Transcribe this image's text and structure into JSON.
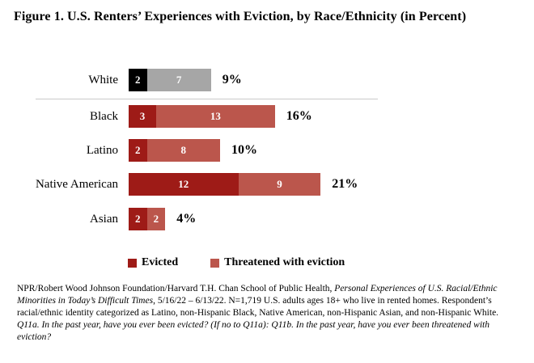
{
  "title": "Figure 1. U.S. Renters’ Experiences with Eviction, by Race/Ethnicity (in Percent)",
  "chart_data": {
    "type": "bar",
    "orientation": "horizontal",
    "stacked": true,
    "title": "Figure 1. U.S. Renters’ Experiences with Eviction, by Race/Ethnicity (in Percent)",
    "value_unit": "percent",
    "categories": [
      "White",
      "Black",
      "Latino",
      "Native American",
      "Asian"
    ],
    "series": [
      {
        "name": "Evicted",
        "values": [
          2,
          3,
          2,
          12,
          2
        ]
      },
      {
        "name": "Threatened with eviction",
        "values": [
          7,
          13,
          8,
          9,
          2
        ]
      }
    ],
    "totals": [
      "9%",
      "16%",
      "10%",
      "21%",
      "4%"
    ],
    "colors": {
      "default": [
        "#9E1B17",
        "#BB564C"
      ],
      "white_row": [
        "#000000",
        "#A6A6A6"
      ]
    },
    "legend": [
      {
        "label": "Evicted",
        "color": "#9E1B17"
      },
      {
        "label": "Threatened with eviction",
        "color": "#BB564C"
      }
    ],
    "legend_position": "bottom",
    "grid": false,
    "separator_after_first_category": true
  },
  "footnote": {
    "source": "NPR/Robert Wood Johnson Foundation/Harvard T.H. Chan School of Public Health, ",
    "study_title": "Personal Experiences of U.S. Racial/Ethnic Minorities in Today’s Difficult Times",
    "details": ", 5/16/22 – 6/13/22. N=1,719 U.S. adults ages 18+ who live in rented homes. Respondent’s racial/ethnic identity categorized as Latino, non-Hispanic Black, Native American, non-Hispanic Asian, and non-Hispanic White. ",
    "questions": "Q11a. In the past year, have you ever been evicted? (If no to Q11a): Q11b. In the past year, have you ever been threatened with eviction?"
  }
}
